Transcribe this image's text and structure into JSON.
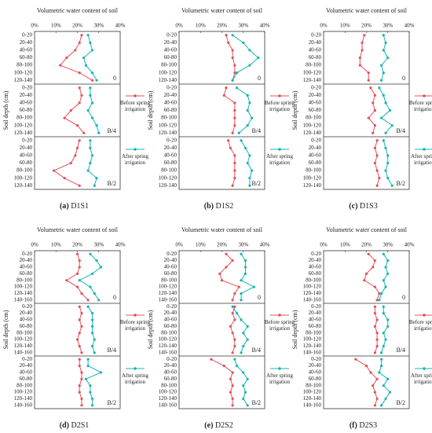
{
  "chart_data": [
    {
      "type": "line",
      "title": "Volumetric water content of soil",
      "ylabel": "Soil depth (cm)",
      "panel_letter": "(a)",
      "panel_name": "D1S1",
      "categories": [
        "0-20",
        "20-40",
        "40-60",
        "60-80",
        "80-100",
        "100-120",
        "120-140"
      ],
      "xlim": [
        0,
        40
      ],
      "xticks": [
        {
          "value": 0,
          "label": "0%"
        },
        {
          "value": 10,
          "label": "10%"
        },
        {
          "value": 20,
          "label": "20%"
        },
        {
          "value": 30,
          "label": "30%"
        },
        {
          "value": 40,
          "label": "40%"
        }
      ],
      "panels": [
        {
          "label": "0",
          "series": [
            {
              "name": "Before spring irrigation",
              "color": "#e4505a",
              "values": [
                22,
                21,
                19,
                15,
                12,
                21,
                27
              ]
            },
            {
              "name": "After spring irrigation",
              "color": "#1bb3b3",
              "values": [
                25,
                26,
                27,
                23,
                24,
                27,
                29
              ]
            }
          ]
        },
        {
          "label": "B/4",
          "series": [
            {
              "name": "Before spring irrigation",
              "color": "#e4505a",
              "values": [
                21,
                22,
                21,
                17,
                14,
                20,
                23
              ]
            },
            {
              "name": "After spring irrigation",
              "color": "#1bb3b3",
              "values": [
                26,
                26,
                27,
                25,
                27,
                29,
                30
              ]
            }
          ]
        },
        {
          "label": "B/2",
          "series": [
            {
              "name": "Before spring irrigation",
              "color": "#e4505a",
              "values": [
                21,
                20,
                19,
                17,
                9,
                14,
                21
              ]
            },
            {
              "name": "After spring irrigation",
              "color": "#1bb3b3",
              "values": [
                26,
                26,
                27,
                26,
                25,
                29,
                28
              ]
            }
          ]
        }
      ]
    },
    {
      "type": "line",
      "title": "Volumetric water content of soil",
      "ylabel": "Soil depth (cm)",
      "panel_letter": "(b)",
      "panel_name": "D1S2",
      "categories": [
        "0-20",
        "20-40",
        "40-60",
        "60-80",
        "80-100",
        "100-120",
        "120-140"
      ],
      "xlim": [
        0,
        40
      ],
      "xticks": [
        {
          "value": 0,
          "label": "0%"
        },
        {
          "value": 10,
          "label": "10%"
        },
        {
          "value": 20,
          "label": "20%"
        },
        {
          "value": 30,
          "label": "30%"
        },
        {
          "value": 40,
          "label": "40%"
        }
      ],
      "panels": [
        {
          "label": "0",
          "series": [
            {
              "name": "Before spring irrigation",
              "color": "#e4505a",
              "values": [
                22,
                23,
                25,
                25,
                26,
                26,
                25
              ]
            },
            {
              "name": "After spring irrigation",
              "color": "#1bb3b3",
              "values": [
                25,
                30,
                33,
                37,
                33,
                27,
                25
              ]
            }
          ]
        },
        {
          "label": "B/4",
          "series": [
            {
              "name": "Before spring irrigation",
              "color": "#e4505a",
              "values": [
                22,
                21,
                26,
                26,
                26,
                26,
                25
              ]
            },
            {
              "name": "After spring irrigation",
              "color": "#1bb3b3",
              "values": [
                27,
                32,
                33,
                32,
                34,
                32,
                28
              ]
            }
          ]
        },
        {
          "label": "B/2",
          "series": [
            {
              "name": "Before spring irrigation",
              "color": "#e4505a",
              "values": [
                23,
                24,
                26,
                26,
                26,
                26,
                25
              ]
            },
            {
              "name": "After spring irrigation",
              "color": "#1bb3b3",
              "values": [
                29,
                31,
                33,
                32,
                34,
                33,
                33
              ]
            }
          ]
        }
      ]
    },
    {
      "type": "line",
      "title": "Volumetric water content of soil",
      "ylabel": "Soil depth (cm)",
      "panel_letter": "(c)",
      "panel_name": "D1S3",
      "categories": [
        "0-20",
        "20-40",
        "40-60",
        "60-80",
        "80-100",
        "100-120",
        "120-140"
      ],
      "xlim": [
        0,
        40
      ],
      "xticks": [
        {
          "value": 0,
          "label": "0%"
        },
        {
          "value": 10,
          "label": "10%"
        },
        {
          "value": 20,
          "label": "20%"
        },
        {
          "value": 30,
          "label": "30%"
        },
        {
          "value": 40,
          "label": "40%"
        }
      ],
      "panels": [
        {
          "label": "0",
          "series": [
            {
              "name": "Before spring irrigation",
              "color": "#e4505a",
              "values": [
                19,
                18,
                18,
                17,
                17,
                21,
                21
              ]
            },
            {
              "name": "After spring irrigation",
              "color": "#1bb3b3",
              "values": [
                28,
                29,
                28,
                30,
                27,
                28,
                27
              ]
            }
          ]
        },
        {
          "label": "B/4",
          "series": [
            {
              "name": "Before spring irrigation",
              "color": "#e4505a",
              "values": [
                22,
                24,
                23,
                24,
                21,
                24,
                23
              ]
            },
            {
              "name": "After spring irrigation",
              "color": "#1bb3b3",
              "values": [
                26,
                28,
                29,
                31,
                27,
                32,
                29
              ]
            }
          ]
        },
        {
          "label": "B/2",
          "series": [
            {
              "name": "Before spring irrigation",
              "color": "#e4505a",
              "values": [
                25,
                24,
                25,
                24,
                25,
                26,
                25
              ]
            },
            {
              "name": "After spring irrigation",
              "color": "#1bb3b3",
              "values": [
                28,
                29,
                30,
                30,
                29,
                30,
                32
              ]
            }
          ]
        }
      ]
    },
    {
      "type": "line",
      "title": "Volumetric water content of soil",
      "ylabel": "Soil depth (cm)",
      "panel_letter": "(d)",
      "panel_name": "D2S1",
      "categories": [
        "0-20",
        "20-40",
        "40-60",
        "60-80",
        "80-100",
        "100-120",
        "120-140",
        "140-160"
      ],
      "xlim": [
        0,
        40
      ],
      "xticks": [
        {
          "value": 0,
          "label": "0%"
        },
        {
          "value": 10,
          "label": "10%"
        },
        {
          "value": 20,
          "label": "20%"
        },
        {
          "value": 30,
          "label": "30%"
        },
        {
          "value": 40,
          "label": "40%"
        }
      ],
      "panels": [
        {
          "label": "0",
          "series": [
            {
              "name": "Before spring irrigation",
              "color": "#e4505a",
              "values": [
                20,
                21,
                21,
                20,
                15,
                20,
                22,
                25
              ]
            },
            {
              "name": "After spring irrigation",
              "color": "#1bb3b3",
              "values": [
                26,
                29,
                31,
                27,
                21,
                26,
                28,
                30
              ]
            }
          ]
        },
        {
          "label": "B/4",
          "series": [
            {
              "name": "Before spring irrigation",
              "color": "#e4505a",
              "values": [
                21,
                22,
                21,
                22,
                21,
                20,
                21,
                22
              ]
            },
            {
              "name": "After spring irrigation",
              "color": "#1bb3b3",
              "values": [
                25,
                27,
                27,
                27,
                27,
                28,
                27,
                28
              ]
            }
          ]
        },
        {
          "label": "B/2",
          "series": [
            {
              "name": "Before spring irrigation",
              "color": "#e4505a",
              "values": [
                21,
                21,
                22,
                22,
                21,
                21,
                22,
                22
              ]
            },
            {
              "name": "After spring irrigation",
              "color": "#1bb3b3",
              "values": [
                25,
                25,
                31,
                24,
                26,
                26,
                27,
                27
              ]
            }
          ]
        }
      ]
    },
    {
      "type": "line",
      "title": "Volumetric water content of soil",
      "ylabel": "Soil depth (cm)",
      "panel_letter": "(e)",
      "panel_name": "D2S2",
      "categories": [
        "0-20",
        "20-40",
        "40-60",
        "60-80",
        "80-100",
        "100-120",
        "120-140",
        "140-160"
      ],
      "xlim": [
        0,
        40
      ],
      "xticks": [
        {
          "value": 0,
          "label": "0%"
        },
        {
          "value": 10,
          "label": "10%"
        },
        {
          "value": 20,
          "label": "20%"
        },
        {
          "value": 30,
          "label": "30%"
        },
        {
          "value": 40,
          "label": "40%"
        }
      ],
      "panels": [
        {
          "label": "0",
          "series": [
            {
              "name": "Before spring irrigation",
              "color": "#e4505a",
              "values": [
                22,
                25,
                22,
                19,
                20,
                28,
                26,
                25
              ]
            },
            {
              "name": "After spring irrigation",
              "color": "#1bb3b3",
              "values": [
                29,
                31,
                31,
                31,
                29,
                35,
                29,
                29
              ]
            }
          ]
        },
        {
          "label": "B/4",
          "series": [
            {
              "name": "Before spring irrigation",
              "color": "#e4505a",
              "values": [
                26,
                25,
                26,
                24,
                25,
                26,
                26,
                25
              ]
            },
            {
              "name": "After spring irrigation",
              "color": "#1bb3b3",
              "values": [
                25,
                27,
                29,
                32,
                30,
                32,
                30,
                29
              ]
            }
          ]
        },
        {
          "label": "B/2",
          "series": [
            {
              "name": "Before spring irrigation",
              "color": "#e4505a",
              "values": [
                15,
                21,
                25,
                24,
                25,
                24,
                25,
                25
              ]
            },
            {
              "name": "After spring irrigation",
              "color": "#1bb3b3",
              "values": [
                26,
                27,
                30,
                32,
                30,
                31,
                30,
                32
              ]
            }
          ]
        }
      ]
    },
    {
      "type": "line",
      "title": "Volumetric water content of soil",
      "ylabel": "Soil depth (cm)",
      "panel_letter": "(f)",
      "panel_name": "D2S3",
      "categories": [
        "0-20",
        "20-40",
        "40-60",
        "60-80",
        "80-100",
        "100-120",
        "120-140",
        "140-160"
      ],
      "xlim": [
        0,
        40
      ],
      "xticks": [
        {
          "value": 0,
          "label": "0%"
        },
        {
          "value": 10,
          "label": "10%"
        },
        {
          "value": 20,
          "label": "20%"
        },
        {
          "value": 30,
          "label": "30%"
        },
        {
          "value": 40,
          "label": "40%"
        }
      ],
      "panels": [
        {
          "label": "0",
          "series": [
            {
              "name": "Before spring irrigation",
              "color": "#e4505a",
              "values": [
                21,
                24,
                23,
                20,
                19,
                24,
                26,
                25
              ]
            },
            {
              "name": "After spring irrigation",
              "color": "#1bb3b3",
              "values": [
                28,
                30,
                29,
                30,
                28,
                29,
                27,
                26
              ]
            }
          ]
        },
        {
          "label": "B/4",
          "series": [
            {
              "name": "Before spring irrigation",
              "color": "#e4505a",
              "values": [
                24,
                24,
                25,
                24,
                25,
                25,
                25,
                24
              ]
            },
            {
              "name": "After spring irrigation",
              "color": "#1bb3b3",
              "values": [
                28,
                28,
                30,
                30,
                28,
                29,
                28,
                27
              ]
            }
          ]
        },
        {
          "label": "B/2",
          "series": [
            {
              "name": "Before spring irrigation",
              "color": "#e4505a",
              "values": [
                15,
                20,
                22,
                25,
                23,
                24,
                25,
                24
              ]
            },
            {
              "name": "After spring irrigation",
              "color": "#1bb3b3",
              "values": [
                27,
                27,
                26,
                30,
                28,
                31,
                29,
                27
              ]
            }
          ]
        }
      ]
    }
  ]
}
